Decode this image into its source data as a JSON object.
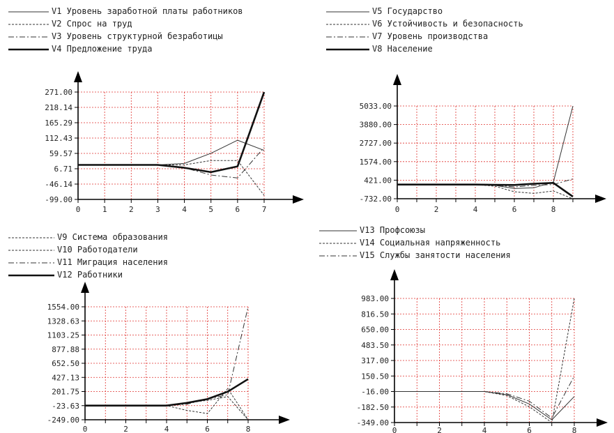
{
  "chart_data": [
    {
      "type": "line",
      "legend_position": "top-left",
      "grid": true,
      "x": [
        0,
        1,
        2,
        3,
        4,
        5,
        6,
        7
      ],
      "xticks": [
        "0",
        "1",
        "2",
        "3",
        "4",
        "5",
        "6",
        "7"
      ],
      "xlim": [
        0,
        7
      ],
      "yticks": [
        "271.00",
        "218.14",
        "165.29",
        "112.43",
        "59.57",
        "6.71",
        "-46.14",
        "-99.00"
      ],
      "ylim": [
        -99,
        271
      ],
      "series": [
        {
          "name": "V1 Уровень заработной платы работников",
          "style": "thin",
          "values": [
            20,
            20,
            20,
            20,
            25,
            60,
            105,
            70
          ]
        },
        {
          "name": "V2 Спрос на труд",
          "style": "dotted",
          "values": [
            20,
            20,
            20,
            20,
            20,
            35,
            35,
            -85
          ]
        },
        {
          "name": "V3 Уровень структурной безработицы",
          "style": "dashdot",
          "values": [
            20,
            20,
            20,
            20,
            10,
            -15,
            -25,
            80
          ]
        },
        {
          "name": "V4 Предложение труда",
          "style": "thick",
          "values": [
            20,
            20,
            20,
            20,
            10,
            -5,
            15,
            271
          ]
        }
      ]
    },
    {
      "type": "line",
      "legend_position": "top-left",
      "grid": true,
      "x": [
        0,
        1,
        2,
        3,
        4,
        5,
        6,
        7,
        8,
        9
      ],
      "xticks": [
        "0",
        "2",
        "4",
        "6",
        "8"
      ],
      "xlim": [
        0,
        9
      ],
      "yticks": [
        "5033.00",
        "3880.00",
        "2727.00",
        "1574.00",
        "421.00",
        "-732.00"
      ],
      "ylim": [
        -732,
        5033
      ],
      "series": [
        {
          "name": "V5 Государство",
          "style": "thin",
          "values": [
            150,
            150,
            150,
            150,
            150,
            100,
            -100,
            -50,
            300,
            5033
          ]
        },
        {
          "name": "V6 Устойчивость и безопасность",
          "style": "dotted",
          "values": [
            150,
            150,
            150,
            150,
            150,
            50,
            -300,
            -400,
            -250,
            -732
          ]
        },
        {
          "name": "V7 Уровень производства",
          "style": "dashdot",
          "values": [
            150,
            150,
            150,
            150,
            150,
            120,
            0,
            100,
            150,
            500
          ]
        },
        {
          "name": "V8 Население",
          "style": "thick",
          "values": [
            150,
            150,
            150,
            150,
            150,
            130,
            120,
            200,
            250,
            -600
          ]
        }
      ]
    },
    {
      "type": "line",
      "legend_position": "top-left",
      "grid": true,
      "x": [
        0,
        1,
        2,
        3,
        4,
        5,
        6,
        7,
        8
      ],
      "xticks": [
        "0",
        "2",
        "4",
        "6",
        "8"
      ],
      "xlim": [
        0,
        8
      ],
      "yticks": [
        "1554.00",
        "1328.63",
        "1103.25",
        "877.88",
        "652.50",
        "427.13",
        "201.75",
        "-23.63",
        "-249.00"
      ],
      "ylim": [
        -249,
        1554
      ],
      "series": [
        {
          "name": "V9 Система образования",
          "style": "dotted",
          "values": [
            -23,
            -23,
            -23,
            -23,
            -23,
            20,
            60,
            120,
            -249
          ]
        },
        {
          "name": "V10 Работодатели",
          "style": "dotted",
          "values": [
            -23,
            -23,
            -23,
            -23,
            -23,
            -100,
            -150,
            250,
            -249
          ]
        },
        {
          "name": "V11 Миграция населения",
          "style": "dashdot",
          "values": [
            -23,
            -23,
            -23,
            -23,
            -23,
            0,
            80,
            150,
            1554
          ]
        },
        {
          "name": "V12 Работники",
          "style": "thick",
          "values": [
            -23,
            -23,
            -23,
            -23,
            -23,
            20,
            80,
            200,
            400
          ]
        }
      ]
    },
    {
      "type": "line",
      "legend_position": "top-left",
      "grid": true,
      "x": [
        0,
        1,
        2,
        3,
        4,
        5,
        6,
        7,
        8
      ],
      "xticks": [
        "0",
        "2",
        "4",
        "6",
        "8"
      ],
      "xlim": [
        0,
        8
      ],
      "yticks": [
        "983.00",
        "816.50",
        "650.00",
        "483.50",
        "317.00",
        "150.50",
        "-16.00",
        "-182.50",
        "-349.00"
      ],
      "ylim": [
        -349,
        983
      ],
      "series": [
        {
          "name": "V13 Профсоюзы",
          "style": "thin",
          "values": [
            -16,
            -16,
            -16,
            -16,
            -16,
            -50,
            -150,
            -320,
            -70
          ]
        },
        {
          "name": "V14 Социальная напряженность",
          "style": "dotted",
          "values": [
            -16,
            -16,
            -16,
            -16,
            -16,
            -60,
            -180,
            -349,
            983
          ]
        },
        {
          "name": "V15 Службы занятости населения",
          "style": "dashdot",
          "values": [
            -16,
            -16,
            -16,
            -16,
            -16,
            -40,
            -120,
            -300,
            150
          ]
        }
      ]
    }
  ]
}
